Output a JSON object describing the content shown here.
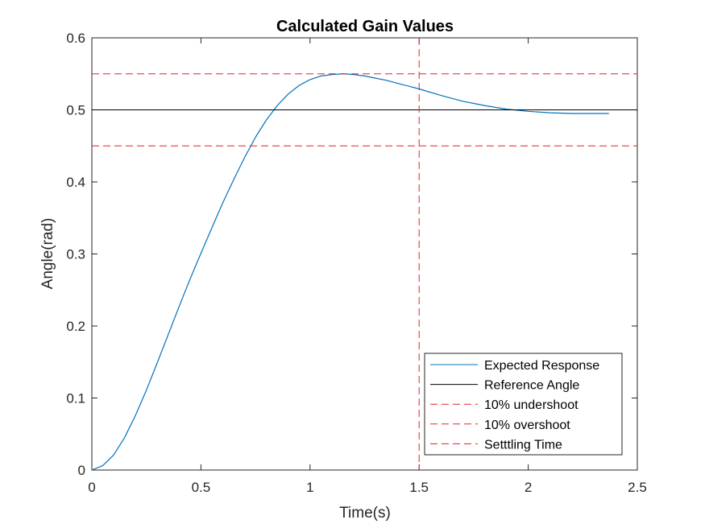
{
  "chart_data": {
    "type": "line",
    "title": "Calculated Gain Values",
    "xlabel": "Time(s)",
    "ylabel": "Angle(rad)",
    "xlim": [
      0,
      2.5
    ],
    "ylim": [
      0,
      0.6
    ],
    "xticks": [
      0,
      0.5,
      1,
      1.5,
      2,
      2.5
    ],
    "xtick_labels": [
      "0",
      "0.5",
      "1",
      "1.5",
      "2",
      "2.5"
    ],
    "yticks": [
      0,
      0.1,
      0.2,
      0.3,
      0.4,
      0.5,
      0.6
    ],
    "ytick_labels": [
      "0",
      "0.1",
      "0.2",
      "0.3",
      "0.4",
      "0.5",
      "0.6"
    ],
    "grid": false,
    "legend_position": "bottom-right",
    "series": [
      {
        "name": "Expected Response",
        "color": "#0072BD",
        "style": "solid",
        "x": [
          0,
          0.05,
          0.1,
          0.15,
          0.2,
          0.25,
          0.3,
          0.35,
          0.4,
          0.45,
          0.5,
          0.55,
          0.6,
          0.65,
          0.7,
          0.75,
          0.8,
          0.85,
          0.9,
          0.95,
          1.0,
          1.05,
          1.1,
          1.15,
          1.2,
          1.25,
          1.3,
          1.35,
          1.4,
          1.5,
          1.6,
          1.7,
          1.8,
          1.9,
          2.0,
          2.1,
          2.2,
          2.3,
          2.37
        ],
        "y": [
          0,
          0.006,
          0.021,
          0.045,
          0.076,
          0.111,
          0.149,
          0.188,
          0.227,
          0.265,
          0.301,
          0.336,
          0.371,
          0.403,
          0.434,
          0.462,
          0.486,
          0.506,
          0.522,
          0.534,
          0.542,
          0.547,
          0.549,
          0.55,
          0.549,
          0.547,
          0.544,
          0.541,
          0.537,
          0.529,
          0.52,
          0.512,
          0.506,
          0.501,
          0.498,
          0.496,
          0.495,
          0.495,
          0.495
        ]
      },
      {
        "name": "Reference Angle",
        "color": "#000000",
        "style": "solid",
        "orientation": "horizontal",
        "value": 0.5
      },
      {
        "name": "10% undershoot",
        "color": "#E0232B",
        "style": "dashed",
        "orientation": "horizontal",
        "value": 0.45
      },
      {
        "name": "10% overshoot",
        "color": "#E0232B",
        "style": "dashed",
        "orientation": "horizontal",
        "value": 0.55
      },
      {
        "name": "Setttling Time",
        "color": "#E0232B",
        "style": "dashed",
        "orientation": "vertical",
        "value": 1.5
      }
    ]
  }
}
